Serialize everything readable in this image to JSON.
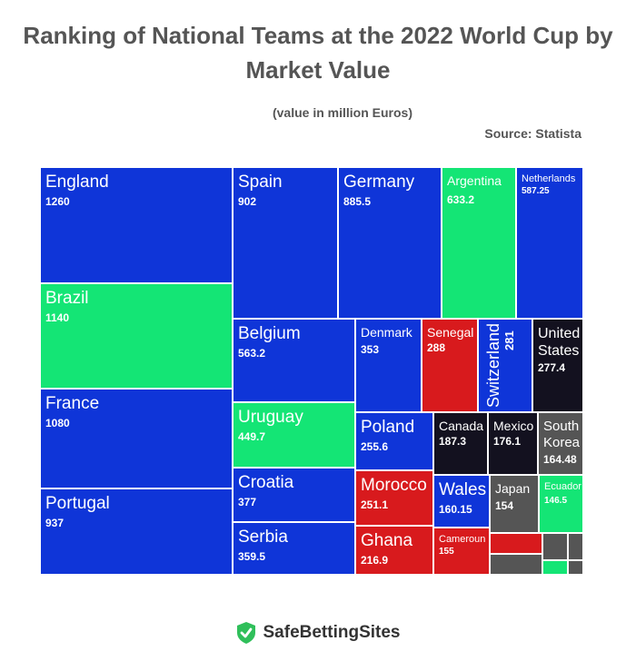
{
  "header": {
    "title_line1": "Ranking of National Teams at the 2022 World Cup by",
    "title_line2": "Market Value",
    "subtitle": "(value in million Euros)",
    "source": "Source: Statista"
  },
  "footer": {
    "brand": "SafeBettingSites"
  },
  "colors": {
    "blue": "#0f35d8",
    "green": "#14e575",
    "red": "#d81a1d",
    "black": "#13111f",
    "gray": "#555555"
  },
  "chart_data": {
    "type": "treemap",
    "title": "Ranking of National Teams at the 2022 World Cup by Market Value",
    "subtitle": "(value in million Euros)",
    "items": [
      {
        "name": "England",
        "value": 1260,
        "color": "blue"
      },
      {
        "name": "Brazil",
        "value": 1140,
        "color": "green"
      },
      {
        "name": "France",
        "value": 1080,
        "color": "blue"
      },
      {
        "name": "Portugal",
        "value": 937,
        "color": "blue"
      },
      {
        "name": "Spain",
        "value": 902,
        "color": "blue"
      },
      {
        "name": "Germany",
        "value": 885.5,
        "color": "blue"
      },
      {
        "name": "Argentina",
        "value": 633.2,
        "color": "green"
      },
      {
        "name": "Netherlands",
        "value": 587.25,
        "color": "blue"
      },
      {
        "name": "Belgium",
        "value": 563.2,
        "color": "blue"
      },
      {
        "name": "Uruguay",
        "value": 449.7,
        "color": "green"
      },
      {
        "name": "Croatia",
        "value": 377,
        "color": "blue"
      },
      {
        "name": "Serbia",
        "value": 359.5,
        "color": "blue"
      },
      {
        "name": "Denmark",
        "value": 353,
        "color": "blue"
      },
      {
        "name": "Senegal",
        "value": 288,
        "color": "red"
      },
      {
        "name": "Switzerland",
        "value": 281,
        "color": "blue"
      },
      {
        "name": "United States",
        "value": 277.4,
        "color": "black"
      },
      {
        "name": "Poland",
        "value": 255.6,
        "color": "blue"
      },
      {
        "name": "Morocco",
        "value": 251.1,
        "color": "red"
      },
      {
        "name": "Ghana",
        "value": 216.9,
        "color": "red"
      },
      {
        "name": "Canada",
        "value": 187.3,
        "color": "black"
      },
      {
        "name": "Mexico",
        "value": 176.1,
        "color": "black"
      },
      {
        "name": "South Korea",
        "value": 164.48,
        "color": "gray"
      },
      {
        "name": "Wales",
        "value": 160.15,
        "color": "blue"
      },
      {
        "name": "Cameroun",
        "value": 155,
        "color": "red"
      },
      {
        "name": "Japan",
        "value": 154,
        "color": "gray"
      },
      {
        "name": "Ecuador",
        "value": 146.5,
        "color": "green"
      }
    ],
    "unlabeled_tiles": [
      "red",
      "gray",
      "gray",
      "gray",
      "green",
      "gray"
    ]
  }
}
